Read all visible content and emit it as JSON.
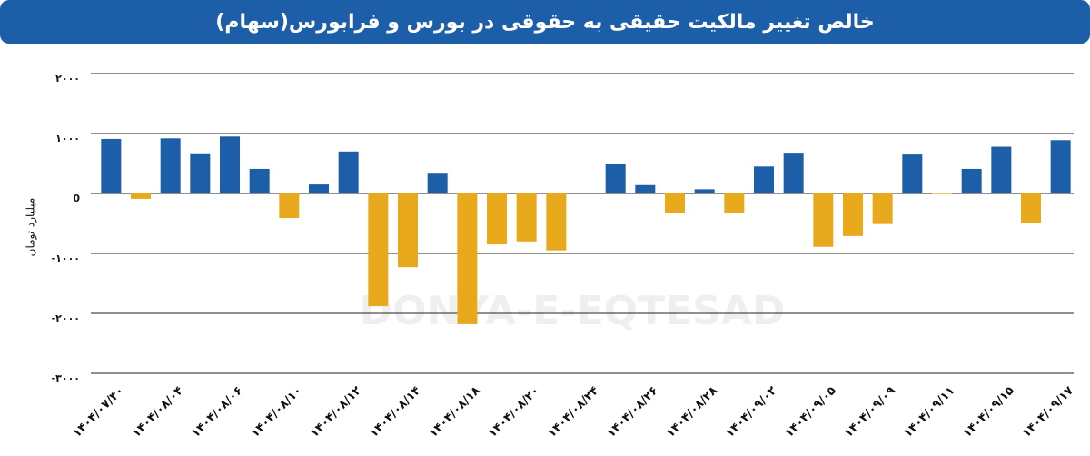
{
  "chart_data": {
    "type": "bar",
    "title": "خالص تغییر مالکیت حقیقی به حقوقی در بورس و فرابورس(سهام)",
    "y_axis_label": "میلیارد تومان",
    "watermark": "DONYA-E-EQTESAD",
    "categories": [
      "۱۴۰۴/۰۷/۳۰",
      null,
      "۱۴۰۴/۰۸/۰۴",
      null,
      "۱۴۰۴/۰۸/۰۶",
      null,
      "۱۴۰۴/۰۸/۱۰",
      null,
      "۱۴۰۴/۰۸/۱۲",
      null,
      "۱۴۰۴/۰۸/۱۴",
      null,
      "۱۴۰۴/۰۸/۱۸",
      null,
      "۱۴۰۴/۰۸/۲۰",
      null,
      "۱۴۰۴/۰۸/۲۴",
      null,
      "۱۴۰۴/۰۸/۲۶",
      null,
      "۱۴۰۴/۰۸/۲۸",
      null,
      "۱۴۰۴/۰۹/۰۲",
      null,
      "۱۴۰۴/۰۹/۰۵",
      null,
      "۱۴۰۴/۰۹/۰۹",
      null,
      "۱۴۰۴/۰۹/۱۱",
      null,
      "۱۴۰۴/۰۹/۱۵",
      null,
      "۱۴۰۴/۰۹/۱۷"
    ],
    "values": [
      910,
      -90,
      920,
      670,
      950,
      410,
      -410,
      150,
      700,
      -1880,
      -1230,
      330,
      -2180,
      -850,
      -800,
      -950,
      null,
      500,
      140,
      -330,
      70,
      -330,
      450,
      680,
      -890,
      -710,
      -510,
      650,
      -10,
      410,
      780,
      -500,
      890
    ],
    "positive_color": "#1d5ea8",
    "negative_color": "#e8a91c",
    "ylim": [
      -3000,
      2000
    ],
    "yticks": [
      {
        "value": -3000,
        "label": "-۳۰۰۰"
      },
      {
        "value": -2000,
        "label": "-۲۰۰۰"
      },
      {
        "value": -1000,
        "label": "-۱۰۰۰"
      },
      0,
      {
        "value": 1000,
        "label": "۱۰۰۰"
      },
      {
        "value": 2000,
        "label": "۲۰۰۰"
      }
    ],
    "grid": true
  }
}
